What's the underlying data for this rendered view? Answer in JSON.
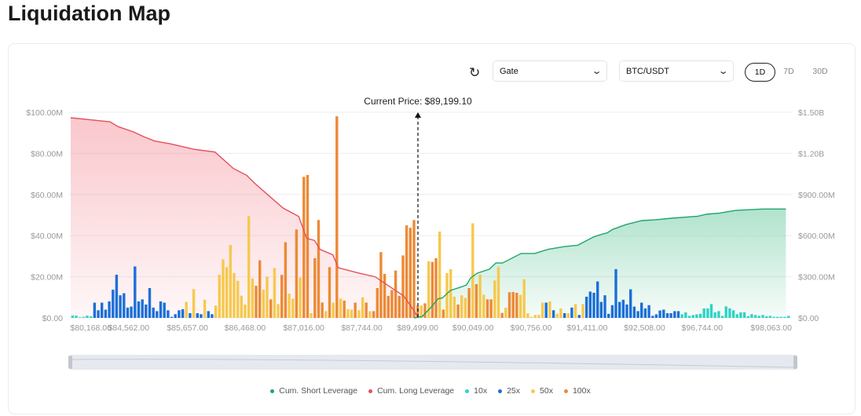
{
  "page_title": "Liquidation Map",
  "controls": {
    "refresh_icon": "refresh-icon",
    "exchange": "Gate",
    "pair": "BTC/USDT",
    "timeframes": [
      "1D",
      "7D",
      "30D"
    ],
    "active_timeframe": "1D"
  },
  "colors": {
    "10x": "#2fd3c5",
    "25x": "#1c6fd8",
    "50x": "#f6c94d",
    "100x": "#ec8a36",
    "cum_short": "#1fa56c",
    "cum_long": "#e4505a"
  },
  "chart_data": {
    "type": "bar+area",
    "current_price_label": "Current Price: $89,199.10",
    "left_axis": {
      "ticks": [
        "$0.00",
        "$20.00M",
        "$40.00M",
        "$60.00M",
        "$80.00M",
        "$100.00M"
      ],
      "range": [
        0,
        100000000
      ]
    },
    "right_axis": {
      "ticks": [
        "$0.00",
        "$300.00M",
        "$600.00M",
        "$900.00M",
        "$1.20B",
        "$1.50B"
      ],
      "range": [
        0,
        1500000000
      ]
    },
    "x_ticks": [
      {
        "label": "$80,168.00",
        "bin": 5.5
      },
      {
        "label": "$84,562.00",
        "bin": 15.8
      },
      {
        "label": "$85,657.00",
        "bin": 31.8
      },
      {
        "label": "$86,468.00",
        "bin": 47.5
      },
      {
        "label": "$87,016.00",
        "bin": 63.5
      },
      {
        "label": "$87,744.00",
        "bin": 79.3
      },
      {
        "label": "$89,499.00",
        "bin": 94.5
      },
      {
        "label": "$90,049.00",
        "bin": 109.6
      },
      {
        "label": "$90,756.00",
        "bin": 125.4
      },
      {
        "label": "$91,411.00",
        "bin": 140.7
      },
      {
        "label": "$92,508.00",
        "bin": 156.3
      },
      {
        "label": "$96,744.00",
        "bin": 172
      },
      {
        "label": "$98,063.00",
        "bin": 190.8
      }
    ],
    "legend": [
      "Cum. Short Leverage",
      "Cum. Long Leverage",
      "10x",
      "25x",
      "50x",
      "100x"
    ],
    "bars_unit": "USD millions",
    "bars_below_price": [
      [
        1.1,
        "10x"
      ],
      [
        1.1,
        "10x"
      ],
      [
        0.3,
        "10x"
      ],
      [
        0.5,
        "10x"
      ],
      [
        1.1,
        "10x"
      ],
      [
        0.8,
        "10x"
      ],
      [
        7.4,
        "25x"
      ],
      [
        3.7,
        "25x"
      ],
      [
        7.4,
        "25x"
      ],
      [
        4,
        "25x"
      ],
      [
        8,
        "25x"
      ],
      [
        13.7,
        "25x"
      ],
      [
        21,
        "25x"
      ],
      [
        11,
        "25x"
      ],
      [
        12,
        "25x"
      ],
      [
        5,
        "25x"
      ],
      [
        5.5,
        "25x"
      ],
      [
        25,
        "25x"
      ],
      [
        8,
        "25x"
      ],
      [
        9,
        "25x"
      ],
      [
        6.5,
        "25x"
      ],
      [
        14.5,
        "25x"
      ],
      [
        5,
        "25x"
      ],
      [
        3.3,
        "25x"
      ],
      [
        8,
        "25x"
      ],
      [
        7.4,
        "25x"
      ],
      [
        3.7,
        "25x"
      ],
      [
        0.5,
        "25x"
      ],
      [
        1.8,
        "25x"
      ],
      [
        3.7,
        "25x"
      ],
      [
        4.2,
        "25x"
      ],
      [
        7.8,
        "50x"
      ],
      [
        2.3,
        "25x"
      ],
      [
        14,
        "50x"
      ],
      [
        2.3,
        "25x"
      ],
      [
        1.8,
        "25x"
      ],
      [
        8.8,
        "50x"
      ],
      [
        3.3,
        "25x"
      ],
      [
        1.8,
        "25x"
      ],
      [
        6,
        "50x"
      ],
      [
        21,
        "50x"
      ],
      [
        28.5,
        "50x"
      ],
      [
        24.7,
        "50x"
      ],
      [
        35.5,
        "50x"
      ],
      [
        21.8,
        "50x"
      ],
      [
        18,
        "50x"
      ],
      [
        10.8,
        "50x"
      ],
      [
        6.5,
        "50x"
      ],
      [
        49.5,
        "50x"
      ],
      [
        19.2,
        "50x"
      ],
      [
        15.6,
        "100x"
      ],
      [
        28,
        "100x"
      ],
      [
        13.7,
        "50x"
      ],
      [
        20,
        "50x"
      ],
      [
        9,
        "100x"
      ],
      [
        24.2,
        "50x"
      ],
      [
        6.7,
        "50x"
      ],
      [
        20.9,
        "100x"
      ],
      [
        36.8,
        "100x"
      ],
      [
        11.8,
        "50x"
      ],
      [
        9.3,
        "50x"
      ],
      [
        43,
        "100x"
      ],
      [
        19.6,
        "50x"
      ],
      [
        68.6,
        "100x"
      ],
      [
        69.5,
        "100x"
      ],
      [
        2.3,
        "50x"
      ],
      [
        29,
        "100x"
      ],
      [
        47.6,
        "100x"
      ],
      [
        7.5,
        "100x"
      ],
      [
        3.3,
        "50x"
      ],
      [
        24.7,
        "100x"
      ],
      [
        7.4,
        "50x"
      ],
      [
        98,
        "100x"
      ],
      [
        9.4,
        "50x"
      ],
      [
        8.4,
        "100x"
      ],
      [
        4.2,
        "50x"
      ],
      [
        4,
        "50x"
      ],
      [
        7.4,
        "100x"
      ],
      [
        3.7,
        "50x"
      ],
      [
        10,
        "50x"
      ],
      [
        7.5,
        "100x"
      ],
      [
        3.3,
        "50x"
      ],
      [
        3.3,
        "100x"
      ],
      [
        14.5,
        "100x"
      ],
      [
        32,
        "100x"
      ],
      [
        21.4,
        "100x"
      ],
      [
        10.7,
        "100x"
      ],
      [
        13.5,
        "100x"
      ],
      [
        23,
        "100x"
      ],
      [
        10.7,
        "100x"
      ],
      [
        30.4,
        "100x"
      ],
      [
        45,
        "100x"
      ],
      [
        43.8,
        "100x"
      ],
      [
        47.6,
        "100x"
      ],
      [
        6,
        "100x"
      ]
    ],
    "bars_above_price": [
      [
        6,
        "50x"
      ],
      [
        7.1,
        "100x"
      ],
      [
        27.5,
        "50x"
      ],
      [
        27.2,
        "100x"
      ],
      [
        29,
        "100x"
      ],
      [
        42,
        "50x"
      ],
      [
        4,
        "100x"
      ],
      [
        21.8,
        "50x"
      ],
      [
        23.7,
        "50x"
      ],
      [
        10.3,
        "50x"
      ],
      [
        6.5,
        "100x"
      ],
      [
        11,
        "50x"
      ],
      [
        9.7,
        "50x"
      ],
      [
        14.5,
        "100x"
      ],
      [
        46,
        "50x"
      ],
      [
        16.4,
        "100x"
      ],
      [
        21,
        "50x"
      ],
      [
        11.3,
        "50x"
      ],
      [
        9,
        "100x"
      ],
      [
        9,
        "100x"
      ],
      [
        18.2,
        "50x"
      ],
      [
        24.7,
        "50x"
      ],
      [
        2.4,
        "100x"
      ],
      [
        5,
        "50x"
      ],
      [
        12.5,
        "100x"
      ],
      [
        12.6,
        "100x"
      ],
      [
        12.2,
        "100x"
      ],
      [
        11.2,
        "50x"
      ],
      [
        18.8,
        "50x"
      ],
      [
        2.3,
        "50x"
      ],
      [
        0.5,
        "50x"
      ],
      [
        1.4,
        "50x"
      ],
      [
        1.4,
        "50x"
      ],
      [
        7.4,
        "50x"
      ],
      [
        7.4,
        "25x"
      ],
      [
        8,
        "50x"
      ],
      [
        3.7,
        "25x"
      ],
      [
        2,
        "50x"
      ],
      [
        4.6,
        "50x"
      ],
      [
        2.3,
        "25x"
      ],
      [
        2.3,
        "50x"
      ],
      [
        5,
        "25x"
      ],
      [
        6.7,
        "50x"
      ],
      [
        1.4,
        "25x"
      ],
      [
        6.7,
        "50x"
      ],
      [
        10.3,
        "25x"
      ],
      [
        12.8,
        "25x"
      ],
      [
        12.2,
        "25x"
      ],
      [
        17.7,
        "25x"
      ],
      [
        7.8,
        "25x"
      ],
      [
        11,
        "25x"
      ],
      [
        2,
        "25x"
      ],
      [
        6.2,
        "25x"
      ],
      [
        23.7,
        "25x"
      ],
      [
        7.8,
        "25x"
      ],
      [
        8.8,
        "25x"
      ],
      [
        6.5,
        "25x"
      ],
      [
        13.9,
        "25x"
      ],
      [
        5.5,
        "25x"
      ],
      [
        3.3,
        "25x"
      ],
      [
        7.4,
        "25x"
      ],
      [
        4.6,
        "25x"
      ],
      [
        6.2,
        "25x"
      ],
      [
        1,
        "25x"
      ],
      [
        1.7,
        "25x"
      ],
      [
        3.6,
        "25x"
      ],
      [
        4,
        "25x"
      ],
      [
        2.3,
        "25x"
      ],
      [
        2.3,
        "25x"
      ],
      [
        3.3,
        "25x"
      ],
      [
        3.3,
        "25x"
      ],
      [
        1.7,
        "10x"
      ],
      [
        2.7,
        "10x"
      ],
      [
        1,
        "10x"
      ],
      [
        1.4,
        "10x"
      ],
      [
        1.7,
        "10x"
      ],
      [
        2,
        "10x"
      ],
      [
        4.6,
        "10x"
      ],
      [
        4.6,
        "10x"
      ],
      [
        6.7,
        "10x"
      ],
      [
        2.7,
        "10x"
      ],
      [
        3.3,
        "10x"
      ],
      [
        1,
        "10x"
      ],
      [
        5.6,
        "10x"
      ],
      [
        4.6,
        "10x"
      ],
      [
        3.7,
        "10x"
      ],
      [
        1.8,
        "10x"
      ],
      [
        2.7,
        "10x"
      ],
      [
        2.7,
        "10x"
      ],
      [
        0.8,
        "10x"
      ],
      [
        1.8,
        "10x"
      ],
      [
        1.4,
        "10x"
      ],
      [
        1,
        "10x"
      ],
      [
        1.4,
        "10x"
      ],
      [
        0.8,
        "10x"
      ],
      [
        1,
        "10x"
      ],
      [
        0.5,
        "10x"
      ],
      [
        0.5,
        "10x"
      ],
      [
        0.5,
        "10x"
      ],
      [
        0.5,
        "10x"
      ],
      [
        1,
        "10x"
      ]
    ],
    "cum_unit": "USD billions",
    "cum_long": [
      [
        0,
        1.46
      ],
      [
        10.7,
        1.43
      ],
      [
        12.9,
        1.395
      ],
      [
        17.1,
        1.357
      ],
      [
        20,
        1.32
      ],
      [
        22.9,
        1.29
      ],
      [
        27.1,
        1.27
      ],
      [
        33.6,
        1.23
      ],
      [
        39.3,
        1.21
      ],
      [
        44.3,
        1.09
      ],
      [
        47.9,
        1.04
      ],
      [
        50,
        0.985
      ],
      [
        53.6,
        0.9
      ],
      [
        57.9,
        0.8
      ],
      [
        62.1,
        0.74
      ],
      [
        64.3,
        0.58
      ],
      [
        66.4,
        0.565
      ],
      [
        67.9,
        0.5
      ],
      [
        71.4,
        0.46
      ],
      [
        72.9,
        0.365
      ],
      [
        78.6,
        0.326
      ],
      [
        82.9,
        0.3
      ],
      [
        87.9,
        0.21
      ],
      [
        90.7,
        0.16
      ],
      [
        93.6,
        0.05
      ],
      [
        94.6,
        0
      ]
    ],
    "cum_short": [
      [
        93.5,
        0
      ],
      [
        95.7,
        0.01
      ],
      [
        97.9,
        0.07
      ],
      [
        100.1,
        0.14
      ],
      [
        101.2,
        0.145
      ],
      [
        103.4,
        0.2
      ],
      [
        106.3,
        0.225
      ],
      [
        107.8,
        0.24
      ],
      [
        108.9,
        0.29
      ],
      [
        110.7,
        0.326
      ],
      [
        114,
        0.355
      ],
      [
        115.8,
        0.4
      ],
      [
        117.6,
        0.4
      ],
      [
        122.7,
        0.47
      ],
      [
        126.4,
        0.47
      ],
      [
        130,
        0.5
      ],
      [
        134.4,
        0.52
      ],
      [
        138.1,
        0.53
      ],
      [
        142.4,
        0.59
      ],
      [
        144.6,
        0.61
      ],
      [
        146.1,
        0.62
      ],
      [
        147.6,
        0.645
      ],
      [
        151.2,
        0.68
      ],
      [
        155.6,
        0.71
      ],
      [
        159.2,
        0.715
      ],
      [
        163.6,
        0.727
      ],
      [
        170.9,
        0.742
      ],
      [
        173.1,
        0.756
      ],
      [
        176.8,
        0.765
      ],
      [
        181.1,
        0.784
      ],
      [
        188.4,
        0.794
      ],
      [
        194.8,
        0.794
      ]
    ],
    "grid": true,
    "legend_position": "bottom"
  }
}
